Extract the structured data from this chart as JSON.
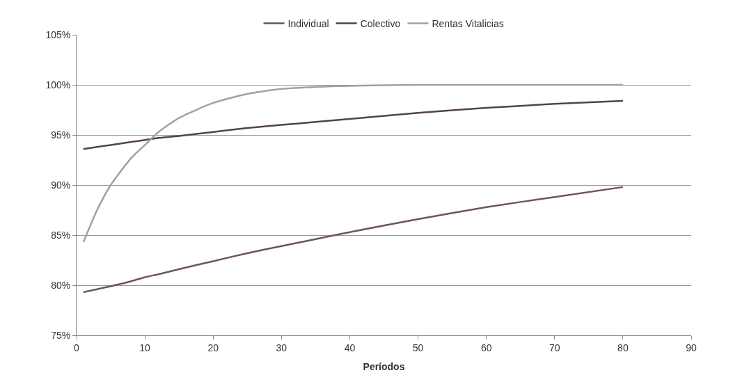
{
  "chart_data": {
    "type": "line",
    "xlabel": "Períodos",
    "x": [
      1,
      3,
      5,
      8,
      10,
      12,
      15,
      20,
      25,
      30,
      35,
      40,
      50,
      60,
      70,
      80
    ],
    "series": [
      {
        "name": "Individual",
        "color": "#6e5656",
        "values": [
          79.3,
          79.6,
          79.9,
          80.4,
          80.8,
          81.1,
          81.6,
          82.4,
          83.2,
          83.9,
          84.6,
          85.3,
          86.6,
          87.8,
          88.8,
          89.8
        ]
      },
      {
        "name": "Colectivo",
        "color": "#554444",
        "values": [
          93.6,
          93.8,
          94.0,
          94.3,
          94.5,
          94.7,
          94.9,
          95.3,
          95.7,
          96.0,
          96.3,
          96.6,
          97.2,
          97.7,
          98.1,
          98.4
        ]
      },
      {
        "name": "Rentas Vitalicias",
        "color": "#a3a0a0",
        "values": [
          84.3,
          87.5,
          90.0,
          92.7,
          94.0,
          95.3,
          96.7,
          98.2,
          99.1,
          99.6,
          99.8,
          99.9,
          100.0,
          100.0,
          100.0,
          100.0
        ]
      }
    ],
    "xlim": [
      0,
      90
    ],
    "xticks": [
      0,
      10,
      20,
      30,
      40,
      50,
      60,
      70,
      80,
      90
    ],
    "ylim": [
      75,
      105
    ],
    "yticks": [
      {
        "value": 75,
        "label": "75%"
      },
      {
        "value": 80,
        "label": "80%"
      },
      {
        "value": 85,
        "label": "85%"
      },
      {
        "value": 90,
        "label": "90%"
      },
      {
        "value": 95,
        "label": "95%"
      },
      {
        "value": 100,
        "label": "100%"
      },
      {
        "value": 105,
        "label": "105%"
      }
    ],
    "grid": "y",
    "legend": "top",
    "marker": "none",
    "line_style": "solid"
  }
}
